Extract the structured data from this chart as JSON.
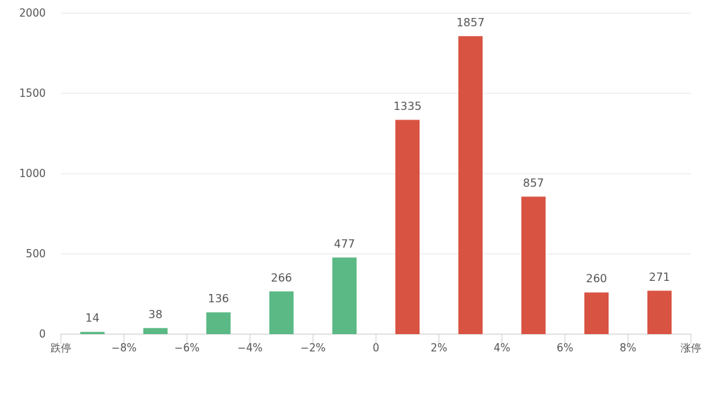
{
  "chart_data": {
    "type": "histogram",
    "bins": [
      -10,
      -8,
      -6,
      -4,
      -2,
      0,
      2,
      4,
      6,
      8,
      10
    ],
    "values": [
      14,
      38,
      136,
      266,
      477,
      1335,
      1857,
      857,
      260,
      271
    ],
    "colors": [
      "#5bb985",
      "#5bb985",
      "#5bb985",
      "#5bb985",
      "#5bb985",
      "#d95343",
      "#d95343",
      "#d95343",
      "#d95343",
      "#d95343"
    ],
    "xlim": [
      -10,
      10
    ],
    "xticks": [
      {
        "value": -10,
        "label": "跌停"
      },
      {
        "value": -8,
        "label": "−8%"
      },
      {
        "value": -6,
        "label": "−6%"
      },
      {
        "value": -4,
        "label": "−4%"
      },
      {
        "value": -2,
        "label": "−2%"
      },
      0,
      {
        "value": 2,
        "label": "2%"
      },
      {
        "value": 4,
        "label": "4%"
      },
      {
        "value": 6,
        "label": "6%"
      },
      {
        "value": 8,
        "label": "8%"
      },
      {
        "value": 10,
        "label": "涨停"
      }
    ],
    "ylim": [
      0,
      2000
    ],
    "yticks": [
      0,
      500,
      1000,
      1500,
      2000
    ],
    "grid": "y",
    "data_labels": true
  }
}
